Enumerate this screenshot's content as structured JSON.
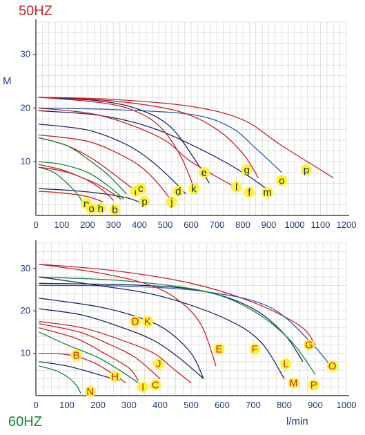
{
  "colors": {
    "red": "#c8202a",
    "navy": "#14285e",
    "blue": "#2a5bb0",
    "green": "#12843a",
    "badge": "#fff230",
    "grid": "#cfcfcf",
    "axis": "#1a3a7a"
  },
  "chart_data": [
    {
      "type": "line",
      "title": "50HZ",
      "ylabel": "M",
      "xlabel": "",
      "xlim": [
        0,
        1200
      ],
      "ylim": [
        0,
        36
      ],
      "xticks": [
        "0",
        "100",
        "200",
        "300",
        "400",
        "500",
        "600",
        "700",
        "800",
        "900",
        "1000",
        "1100",
        "1200"
      ],
      "yticks": [
        "10",
        "20",
        "30"
      ],
      "grid": true,
      "series": [
        {
          "name": "p",
          "color": "red",
          "points": [
            [
              10,
              22
            ],
            [
              300,
              21.6
            ],
            [
              600,
              20.3
            ],
            [
              800,
              17.8
            ],
            [
              950,
              13
            ],
            [
              1150,
              7
            ]
          ]
        },
        {
          "name": "o",
          "color": "blue",
          "points": [
            [
              10,
              20
            ],
            [
              300,
              19.7
            ],
            [
              600,
              18.8
            ],
            [
              750,
              16.5
            ],
            [
              850,
              12.5
            ],
            [
              950,
              8
            ]
          ]
        },
        {
          "name": "g",
          "color": "red",
          "points": [
            [
              10,
              22
            ],
            [
              300,
              21.3
            ],
            [
              550,
              19.4
            ],
            [
              700,
              16
            ],
            [
              800,
              11.5
            ],
            [
              860,
              7
            ]
          ]
        },
        {
          "name": "m",
          "color": "navy",
          "points": [
            [
              10,
              19.5
            ],
            [
              250,
              18.6
            ],
            [
              450,
              16.3
            ],
            [
              650,
              12
            ],
            [
              800,
              8
            ],
            [
              890,
              5
            ]
          ]
        },
        {
          "name": "f",
          "color": "navy",
          "points": [
            [
              10,
              22
            ],
            [
              250,
              21.3
            ],
            [
              400,
              19.7
            ],
            [
              520,
              16.5
            ],
            [
              620,
              10
            ],
            [
              670,
              6
            ]
          ]
        },
        {
          "name": "l",
          "color": "red",
          "points": [
            [
              10,
              22
            ],
            [
              250,
              21
            ],
            [
              380,
              19.5
            ],
            [
              480,
              16.5
            ],
            [
              560,
              11
            ],
            [
              620,
              4
            ]
          ]
        },
        {
          "name": "e",
          "color": "red",
          "points": [
            [
              10,
              20
            ],
            [
              250,
              18.6
            ],
            [
              480,
              14.5
            ],
            [
              600,
              10
            ],
            [
              780,
              5
            ]
          ]
        },
        {
          "name": "k",
          "color": "navy",
          "points": [
            [
              10,
              17
            ],
            [
              200,
              15.9
            ],
            [
              350,
              13.2
            ],
            [
              450,
              10
            ],
            [
              530,
              6.5
            ],
            [
              580,
              4
            ]
          ]
        },
        {
          "name": "d",
          "color": "red",
          "points": [
            [
              10,
              15
            ],
            [
              200,
              13.8
            ],
            [
              340,
              11
            ],
            [
              420,
              8.5
            ],
            [
              480,
              5.5
            ],
            [
              520,
              3
            ]
          ]
        },
        {
          "name": "j",
          "color": "red",
          "points": [
            [
              10,
              14.5
            ],
            [
              120,
              13
            ],
            [
              220,
              10.5
            ],
            [
              320,
              7
            ],
            [
              400,
              4
            ]
          ]
        },
        {
          "name": "c",
          "color": "green",
          "points": [
            [
              10,
              14.5
            ],
            [
              120,
              13
            ],
            [
              200,
              10.5
            ],
            [
              280,
              7.5
            ],
            [
              350,
              4
            ]
          ]
        },
        {
          "name": "p_low",
          "color": "navy",
          "points": [
            [
              10,
              5
            ],
            [
              150,
              4.6
            ],
            [
              250,
              4.1
            ],
            [
              350,
              3.3
            ],
            [
              400,
              2.5
            ]
          ]
        },
        {
          "name": "h",
          "color": "red",
          "points": [
            [
              10,
              9
            ],
            [
              100,
              8.3
            ],
            [
              180,
              7
            ],
            [
              250,
              5
            ],
            [
              300,
              2.8
            ]
          ]
        },
        {
          "name": "i",
          "color": "red",
          "points": [
            [
              10,
              9.5
            ],
            [
              100,
              8.5
            ],
            [
              180,
              7
            ],
            [
              250,
              5.5
            ],
            [
              330,
              3
            ]
          ]
        },
        {
          "name": "b",
          "color": "green",
          "points": [
            [
              10,
              10
            ],
            [
              100,
              9.5
            ],
            [
              200,
              8
            ],
            [
              280,
              5.5
            ],
            [
              340,
              3
            ]
          ]
        },
        {
          "name": "o_low",
          "color": "red",
          "points": [
            [
              10,
              4.5
            ],
            [
              100,
              4.2
            ],
            [
              200,
              3.5
            ],
            [
              260,
              2.5
            ]
          ]
        },
        {
          "name": "n",
          "color": "green",
          "points": [
            [
              10,
              9
            ],
            [
              70,
              8
            ],
            [
              120,
              6
            ],
            [
              160,
              4
            ],
            [
              180,
              2.5
            ]
          ]
        }
      ],
      "labels": [
        {
          "text": "e",
          "x": 650,
          "y": 8
        },
        {
          "text": "g",
          "x": 815,
          "y": 8.5
        },
        {
          "text": "o",
          "x": 950,
          "y": 6.5
        },
        {
          "text": "p",
          "x": 1045,
          "y": 8.5
        },
        {
          "text": "l",
          "x": 385,
          "y": 4.5
        },
        {
          "text": "c",
          "x": 405,
          "y": 5
        },
        {
          "text": "d",
          "x": 550,
          "y": 4.5
        },
        {
          "text": "k",
          "x": 610,
          "y": 5
        },
        {
          "text": "l",
          "x": 775,
          "y": 5.3
        },
        {
          "text": "f",
          "x": 825,
          "y": 4.3
        },
        {
          "text": "m",
          "x": 895,
          "y": 4.3
        },
        {
          "text": "p",
          "x": 420,
          "y": 2.6
        },
        {
          "text": "j",
          "x": 525,
          "y": 2.5
        },
        {
          "text": "n",
          "x": 195,
          "y": 2.2
        },
        {
          "text": "o",
          "x": 215,
          "y": 1.3
        },
        {
          "text": "h",
          "x": 250,
          "y": 1.3
        },
        {
          "text": "b",
          "x": 305,
          "y": 1.1
        }
      ]
    },
    {
      "type": "line",
      "title": "60HZ",
      "ylabel": "",
      "xlabel": "l/min",
      "xlim": [
        0,
        1000
      ],
      "ylim": [
        0,
        36
      ],
      "xticks": [
        "0",
        "100",
        "200",
        "300",
        "400",
        "500",
        "600",
        "700",
        "800",
        "900",
        "1000"
      ],
      "yticks": [
        "10",
        "20",
        "30"
      ],
      "grid": true,
      "series": [
        {
          "name": "G",
          "color": "red",
          "points": [
            [
              10,
              31
            ],
            [
              250,
              29.5
            ],
            [
              500,
              26.5
            ],
            [
              700,
              22
            ],
            [
              850,
              16.5
            ],
            [
              900,
              12
            ]
          ]
        },
        {
          "name": "O",
          "color": "blue",
          "points": [
            [
              10,
              26
            ],
            [
              300,
              25.8
            ],
            [
              550,
              24.5
            ],
            [
              750,
              21
            ],
            [
              880,
              13
            ],
            [
              960,
              6
            ]
          ]
        },
        {
          "name": "M",
          "color": "navy",
          "points": [
            [
              10,
              26.5
            ],
            [
              350,
              26
            ],
            [
              550,
              24.5
            ],
            [
              700,
              20.5
            ],
            [
              800,
              14.5
            ],
            [
              860,
              8
            ]
          ]
        },
        {
          "name": "P",
          "color": "green",
          "points": [
            [
              10,
              28
            ],
            [
              300,
              27
            ],
            [
              550,
              24.5
            ],
            [
              700,
              20
            ],
            [
              820,
              13
            ],
            [
              900,
              5
            ]
          ]
        },
        {
          "name": "L",
          "color": "navy",
          "points": [
            [
              10,
              28
            ],
            [
              200,
              26
            ],
            [
              400,
              23.5
            ],
            [
              600,
              18.5
            ],
            [
              720,
              13
            ],
            [
              800,
              4
            ]
          ]
        },
        {
          "name": "F",
          "color": "red",
          "points": [
            [
              10,
              31
            ],
            [
              200,
              29
            ],
            [
              350,
              26.5
            ],
            [
              450,
              23
            ],
            [
              530,
              17
            ],
            [
              580,
              7
            ]
          ]
        },
        {
          "name": "E",
          "color": "navy",
          "points": [
            [
              10,
              23
            ],
            [
              200,
              21
            ],
            [
              330,
              18.5
            ],
            [
              420,
              15.5
            ],
            [
              500,
              10
            ],
            [
              540,
              4
            ]
          ]
        },
        {
          "name": "K",
          "color": "navy",
          "points": [
            [
              10,
              20.5
            ],
            [
              150,
              19
            ],
            [
              280,
              16
            ],
            [
              380,
              13
            ],
            [
              460,
              9
            ],
            [
              540,
              4
            ]
          ]
        },
        {
          "name": "D",
          "color": "red",
          "points": [
            [
              10,
              17.5
            ],
            [
              150,
              16
            ],
            [
              280,
              13
            ],
            [
              380,
              10
            ],
            [
              440,
              6.5
            ],
            [
              500,
              3
            ]
          ]
        },
        {
          "name": "J",
          "color": "red",
          "points": [
            [
              10,
              17
            ],
            [
              140,
              15
            ],
            [
              240,
              12
            ],
            [
              320,
              9
            ],
            [
              400,
              4
            ]
          ]
        },
        {
          "name": "C",
          "color": "red",
          "points": [
            [
              10,
              16
            ],
            [
              130,
              13.5
            ],
            [
              220,
              10
            ],
            [
              300,
              6.5
            ],
            [
              330,
              3.5
            ]
          ]
        },
        {
          "name": "I",
          "color": "green",
          "points": [
            [
              10,
              15
            ],
            [
              100,
              12
            ],
            [
              200,
              9
            ],
            [
              280,
              5.5
            ],
            [
              330,
              3
            ]
          ]
        },
        {
          "name": "B",
          "color": "red",
          "points": [
            [
              10,
              10
            ],
            [
              100,
              9.7
            ],
            [
              180,
              8
            ],
            [
              240,
              5.5
            ],
            [
              290,
              3
            ]
          ]
        },
        {
          "name": "H",
          "color": "navy",
          "points": [
            [
              10,
              8
            ],
            [
              100,
              7
            ],
            [
              200,
              5
            ],
            [
              270,
              3.5
            ]
          ]
        },
        {
          "name": "N",
          "color": "green",
          "points": [
            [
              10,
              7
            ],
            [
              60,
              6
            ],
            [
              100,
              4.5
            ],
            [
              130,
              2.5
            ],
            [
              145,
              0.5
            ]
          ]
        }
      ],
      "labels": [
        {
          "text": "G",
          "x": 880,
          "y": 12
        },
        {
          "text": "E",
          "x": 590,
          "y": 11
        },
        {
          "text": "F",
          "x": 705,
          "y": 11
        },
        {
          "text": "D",
          "x": 320,
          "y": 17.5
        },
        {
          "text": "K",
          "x": 360,
          "y": 17.5
        },
        {
          "text": "O",
          "x": 955,
          "y": 7
        },
        {
          "text": "L",
          "x": 805,
          "y": 7.5
        },
        {
          "text": "M",
          "x": 830,
          "y": 3
        },
        {
          "text": "P",
          "x": 895,
          "y": 2.5
        },
        {
          "text": "B",
          "x": 130,
          "y": 9.5
        },
        {
          "text": "J",
          "x": 395,
          "y": 7.5
        },
        {
          "text": "H",
          "x": 255,
          "y": 4.5
        },
        {
          "text": "C",
          "x": 385,
          "y": 2.5
        },
        {
          "text": "I",
          "x": 345,
          "y": 2
        },
        {
          "text": "N",
          "x": 175,
          "y": 1
        }
      ]
    }
  ]
}
